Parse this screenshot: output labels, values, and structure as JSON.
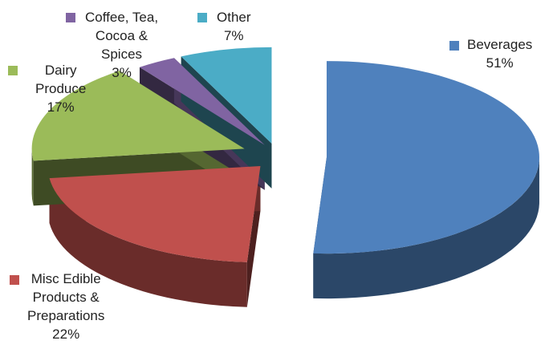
{
  "chart_data": {
    "type": "pie",
    "style": "3d-exploded",
    "slices": [
      {
        "name": "Beverages",
        "value": 51,
        "label": "51%",
        "color": "#4f81bd"
      },
      {
        "name": "Misc Edible Products & Preparations",
        "value": 22,
        "label": "22%",
        "color": "#c0504d"
      },
      {
        "name": "Dairy Produce",
        "value": 17,
        "label": "17%",
        "color": "#9bbb59"
      },
      {
        "name": "Coffee, Tea, Cocoa & Spices",
        "value": 3,
        "label": "3%",
        "color": "#8064a2"
      },
      {
        "name": "Other",
        "value": 7,
        "label": "7%",
        "color": "#4bacc6"
      }
    ],
    "labels": {
      "beverages": {
        "lines": [
          "Beverages"
        ],
        "pct": "51%"
      },
      "misc": {
        "lines": [
          "Misc Edible",
          "Products &",
          "Preparations"
        ],
        "pct": "22%"
      },
      "dairy": {
        "lines": [
          "Dairy",
          "Produce"
        ],
        "pct": "17%"
      },
      "coffee": {
        "lines": [
          "Coffee, Tea,",
          "Cocoa &",
          "Spices"
        ],
        "pct": "3%"
      },
      "other": {
        "lines": [
          "Other"
        ],
        "pct": "7%"
      }
    }
  }
}
